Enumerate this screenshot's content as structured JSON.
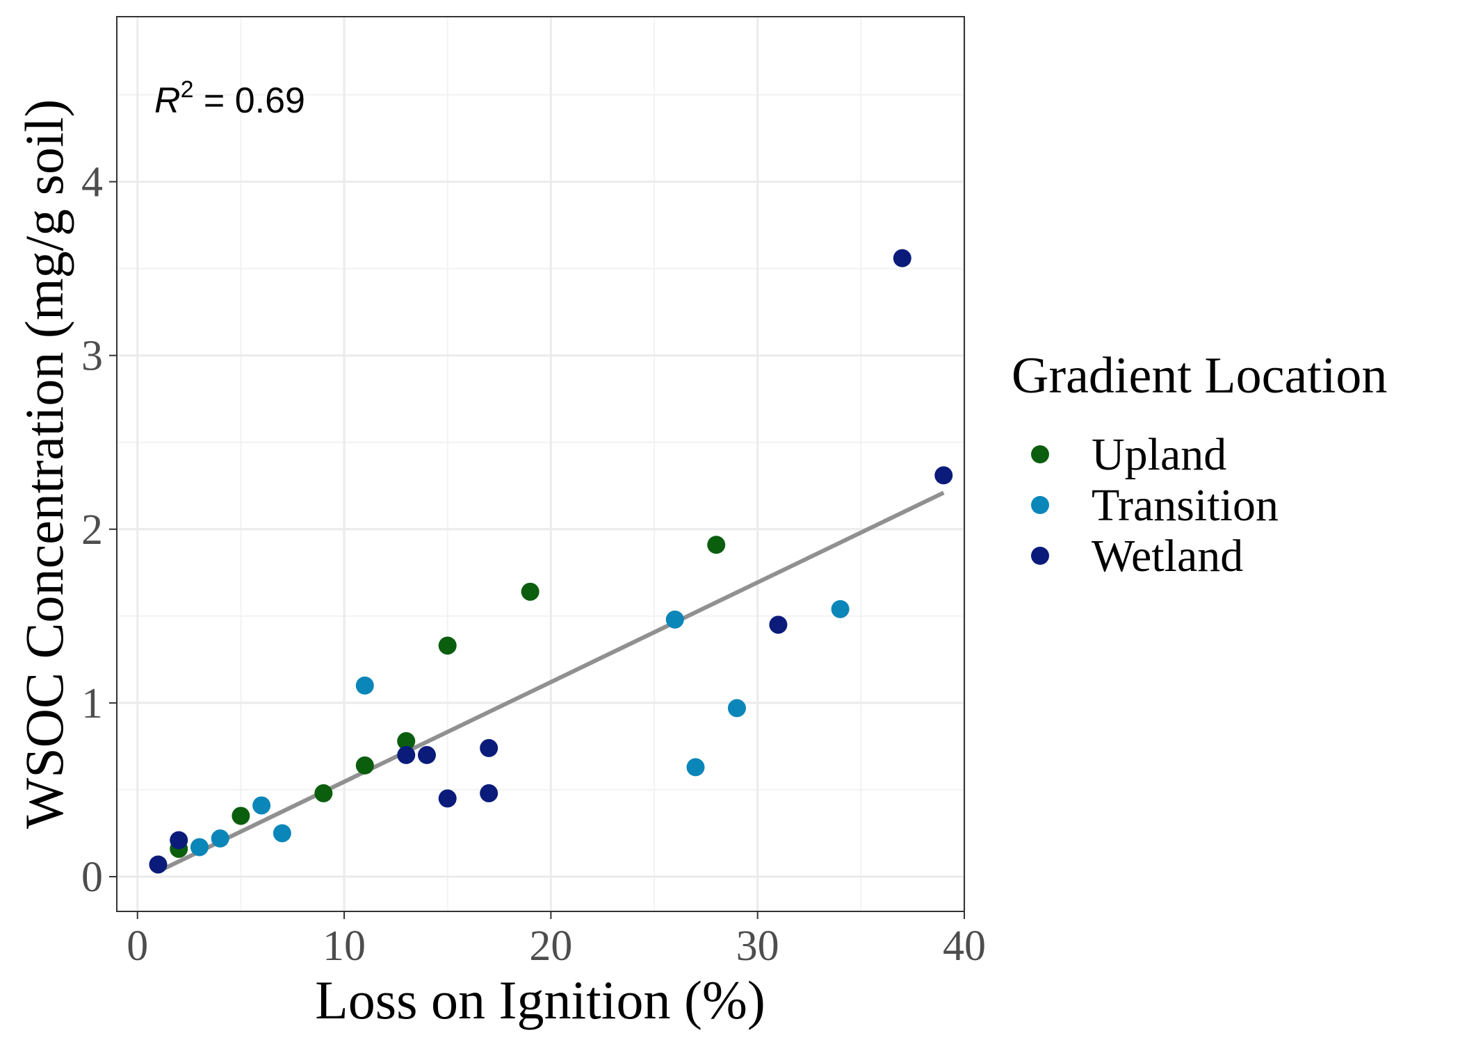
{
  "chart_data": {
    "type": "scatter",
    "xlabel": "Loss on Ignition (%)",
    "ylabel": "WSOC Concentration (mg/g soil)",
    "xlim": [
      -1,
      40
    ],
    "ylim": [
      -0.2,
      4.95
    ],
    "x_ticks": [
      0,
      10,
      20,
      30,
      40
    ],
    "y_ticks": [
      0,
      1,
      2,
      3,
      4
    ],
    "grid": true,
    "legend": {
      "title": "Gradient Location",
      "placement": "right"
    },
    "annotation": {
      "r_label": "R",
      "r_exp": "2",
      "r_value": " = 0.69"
    },
    "trendline": {
      "x": [
        1,
        39
      ],
      "y": [
        0.03,
        2.21
      ],
      "color": "#909090"
    },
    "series": [
      {
        "name": "Upland",
        "color": "#0b5e0e",
        "points": [
          [
            2,
            0.16
          ],
          [
            5,
            0.35
          ],
          [
            9,
            0.48
          ],
          [
            11,
            0.64
          ],
          [
            13,
            0.78
          ],
          [
            15,
            1.33
          ],
          [
            19,
            1.64
          ],
          [
            28,
            1.91
          ]
        ]
      },
      {
        "name": "Transition",
        "color": "#0b86b8",
        "points": [
          [
            3,
            0.17
          ],
          [
            4,
            0.22
          ],
          [
            6,
            0.41
          ],
          [
            7,
            0.25
          ],
          [
            11,
            1.1
          ],
          [
            26,
            1.48
          ],
          [
            27,
            0.63
          ],
          [
            29,
            0.97
          ],
          [
            34,
            1.54
          ]
        ]
      },
      {
        "name": "Wetland",
        "color": "#0a1b7a",
        "points": [
          [
            1,
            0.07
          ],
          [
            2,
            0.21
          ],
          [
            13,
            0.7
          ],
          [
            14,
            0.7
          ],
          [
            15,
            0.45
          ],
          [
            17,
            0.74
          ],
          [
            17,
            0.48
          ],
          [
            31,
            1.45
          ],
          [
            37,
            3.56
          ],
          [
            39,
            2.31
          ]
        ]
      }
    ]
  }
}
